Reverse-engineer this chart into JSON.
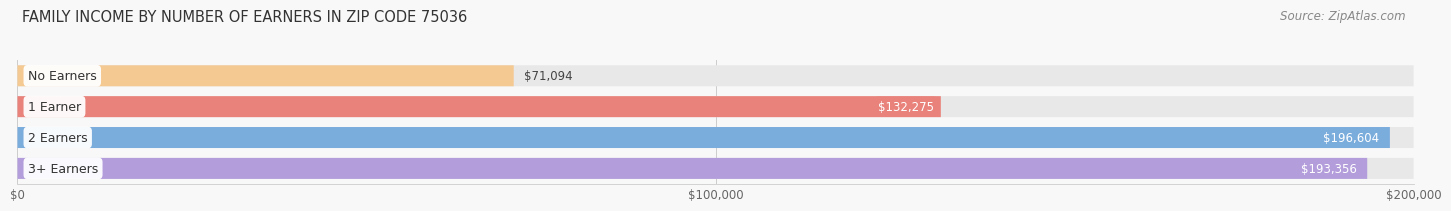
{
  "title": "FAMILY INCOME BY NUMBER OF EARNERS IN ZIP CODE 75036",
  "source": "Source: ZipAtlas.com",
  "categories": [
    "No Earners",
    "1 Earner",
    "2 Earners",
    "3+ Earners"
  ],
  "values": [
    71094,
    132275,
    196604,
    193356
  ],
  "bar_colors": [
    "#f5c992",
    "#e8827a",
    "#7aacdc",
    "#b39ddb"
  ],
  "bar_background": "#e8e8e8",
  "value_labels": [
    "$71,094",
    "$132,275",
    "$196,604",
    "$193,356"
  ],
  "value_label_colors": [
    "#555555",
    "#ffffff",
    "#ffffff",
    "#ffffff"
  ],
  "value_label_bg": [
    null,
    "#e8827a",
    null,
    null
  ],
  "xlim": [
    0,
    200000
  ],
  "xticks": [
    0,
    100000,
    200000
  ],
  "xticklabels": [
    "$0",
    "$100,000",
    "$200,000"
  ],
  "background_color": "#f8f8f8",
  "title_fontsize": 10.5,
  "source_fontsize": 8.5,
  "label_fontsize": 9,
  "value_fontsize": 8.5
}
